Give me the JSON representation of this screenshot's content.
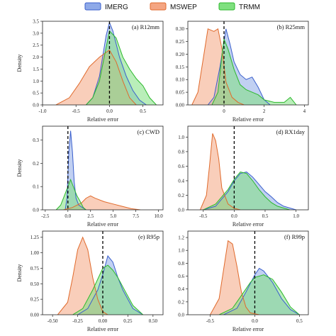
{
  "colors": {
    "IMERG": {
      "fill": "#8ea9e8",
      "stroke": "#3a5fcd"
    },
    "MSWEP": {
      "fill": "#f4a582",
      "stroke": "#e06a2c"
    },
    "TRMM": {
      "fill": "#7fe07f",
      "stroke": "#2cb82c"
    }
  },
  "legend": [
    "IMERG",
    "MSWEP",
    "TRMM"
  ],
  "chart_data": [
    {
      "type": "area",
      "title": "(a) R12mm",
      "xlabel": "Relative error",
      "ylabel": "Density",
      "xlim": [
        -1.0,
        0.8
      ],
      "ylim": [
        0,
        3.5
      ],
      "vline": 0,
      "xticks": [
        -1.0,
        -0.5,
        0.0,
        0.5
      ],
      "xticklabels": [
        "-1.0",
        "-0.5",
        "0.0",
        "0.5"
      ],
      "yticks": [
        0,
        0.5,
        1.0,
        1.5,
        2.0,
        2.5,
        3.0,
        3.5
      ],
      "yticklabels": [
        "0.0",
        "0.5",
        "1.0",
        "1.5",
        "2.0",
        "2.5",
        "3.0",
        "3.5"
      ],
      "series": [
        {
          "name": "IMERG",
          "x": [
            -0.35,
            -0.25,
            -0.15,
            -0.05,
            0.0,
            0.05,
            0.15,
            0.25,
            0.35,
            0.45,
            0.55
          ],
          "y": [
            0,
            0.3,
            1.2,
            2.9,
            3.45,
            3.1,
            2.0,
            1.2,
            0.6,
            0.2,
            0
          ]
        },
        {
          "name": "MSWEP",
          "x": [
            -0.8,
            -0.6,
            -0.45,
            -0.3,
            -0.15,
            0.0,
            0.1,
            0.2,
            0.3,
            0.4
          ],
          "y": [
            0,
            0.3,
            0.9,
            1.6,
            2.0,
            2.3,
            1.8,
            1.0,
            0.3,
            0
          ]
        },
        {
          "name": "TRMM",
          "x": [
            -0.35,
            -0.25,
            -0.15,
            -0.05,
            0.0,
            0.1,
            0.2,
            0.3,
            0.4,
            0.5,
            0.6,
            0.7
          ],
          "y": [
            0,
            0.3,
            1.0,
            2.4,
            3.1,
            2.8,
            2.0,
            1.5,
            1.1,
            0.8,
            0.3,
            0
          ]
        }
      ]
    },
    {
      "type": "area",
      "title": "(b) R25mm",
      "xlabel": "Relative error",
      "ylabel": "",
      "xlim": [
        -1.8,
        4.2
      ],
      "ylim": [
        0,
        0.33
      ],
      "vline": 0,
      "xticks": [
        0,
        2,
        4
      ],
      "xticklabels": [
        "0",
        "2",
        "4"
      ],
      "yticks": [
        0,
        0.05,
        0.1,
        0.15,
        0.2,
        0.25,
        0.3
      ],
      "yticklabels": [
        "0.00",
        "0.05",
        "0.10",
        "0.15",
        "0.20",
        "0.25",
        "0.30"
      ],
      "series": [
        {
          "name": "IMERG",
          "x": [
            -0.8,
            -0.5,
            -0.2,
            0.0,
            0.1,
            0.3,
            0.5,
            0.8,
            1.1,
            1.4,
            1.7,
            2.0,
            2.3
          ],
          "y": [
            0,
            0.03,
            0.15,
            0.25,
            0.3,
            0.24,
            0.17,
            0.12,
            0.1,
            0.11,
            0.07,
            0.02,
            0
          ]
        },
        {
          "name": "MSWEP",
          "x": [
            -1.6,
            -1.3,
            -1.0,
            -0.8,
            -0.5,
            -0.3,
            -0.1,
            0.1,
            0.4,
            0.7,
            1.0
          ],
          "y": [
            0,
            0.05,
            0.2,
            0.3,
            0.29,
            0.3,
            0.22,
            0.09,
            0.03,
            0.01,
            0
          ]
        },
        {
          "name": "TRMM",
          "x": [
            -0.6,
            -0.3,
            -0.1,
            0.0,
            0.2,
            0.5,
            0.8,
            1.1,
            1.4,
            1.7,
            2.0,
            2.5,
            3.0,
            3.3,
            3.6
          ],
          "y": [
            0,
            0.05,
            0.2,
            0.26,
            0.22,
            0.14,
            0.08,
            0.06,
            0.05,
            0.04,
            0.02,
            0.01,
            0.01,
            0.03,
            0
          ]
        }
      ]
    },
    {
      "type": "area",
      "title": "(c) CWD",
      "xlabel": "Relative error",
      "ylabel": "Density",
      "xlim": [
        -2.8,
        10.5
      ],
      "ylim": [
        0,
        0.36
      ],
      "vline": 0,
      "xticks": [
        -2.5,
        0.0,
        2.5,
        5.0,
        7.5,
        10.0
      ],
      "xticklabels": [
        "-2.5",
        "0.0",
        "2.5",
        "5.0",
        "7.5",
        "10.0"
      ],
      "yticks": [
        0,
        0.1,
        0.2,
        0.3
      ],
      "yticklabels": [
        "0.0",
        "0.1",
        "0.2",
        "0.3"
      ],
      "series": [
        {
          "name": "IMERG",
          "x": [
            -0.3,
            -0.1,
            0.1,
            0.3,
            0.5,
            0.7,
            0.9,
            1.2,
            1.6,
            2.0
          ],
          "y": [
            0,
            0.05,
            0.25,
            0.34,
            0.25,
            0.12,
            0.05,
            0.02,
            0.01,
            0
          ]
        },
        {
          "name": "MSWEP",
          "x": [
            -0.5,
            0.0,
            0.5,
            1.0,
            1.5,
            2.0,
            2.5,
            3.0,
            4.0,
            5.0,
            6.0,
            7.0,
            8.0
          ],
          "y": [
            0,
            0.005,
            0.01,
            0.02,
            0.03,
            0.05,
            0.06,
            0.05,
            0.035,
            0.025,
            0.015,
            0.005,
            0
          ]
        },
        {
          "name": "TRMM",
          "x": [
            -1.3,
            -0.8,
            -0.3,
            0.0,
            0.3,
            0.7,
            1.0,
            1.3,
            1.7,
            2.0
          ],
          "y": [
            0,
            0.02,
            0.07,
            0.1,
            0.13,
            0.09,
            0.06,
            0.04,
            0.01,
            0
          ]
        }
      ]
    },
    {
      "type": "area",
      "title": "(d) RX1day",
      "xlabel": "Relative error",
      "ylabel": "",
      "xlim": [
        -0.75,
        1.2
      ],
      "ylim": [
        0,
        1.15
      ],
      "vline": 0,
      "xticks": [
        -0.5,
        0.0,
        0.5,
        1.0
      ],
      "xticklabels": [
        "-0.5",
        "0.0",
        "0.5",
        "1.0"
      ],
      "yticks": [
        0,
        0.2,
        0.4,
        0.6,
        0.8,
        1.0
      ],
      "yticklabels": [
        "0.0",
        "0.2",
        "0.4",
        "0.6",
        "0.8",
        "1.0"
      ],
      "series": [
        {
          "name": "IMERG",
          "x": [
            -0.5,
            -0.3,
            -0.1,
            0.0,
            0.1,
            0.2,
            0.3,
            0.4,
            0.5,
            0.6,
            0.7,
            0.8,
            1.0
          ],
          "y": [
            0,
            0.05,
            0.25,
            0.4,
            0.5,
            0.52,
            0.45,
            0.35,
            0.25,
            0.18,
            0.1,
            0.05,
            0
          ]
        },
        {
          "name": "MSWEP",
          "x": [
            -0.55,
            -0.45,
            -0.4,
            -0.35,
            -0.3,
            -0.25,
            -0.2,
            -0.1,
            0.0,
            0.1
          ],
          "y": [
            0,
            0.2,
            0.6,
            1.05,
            0.95,
            0.7,
            0.3,
            0.08,
            0.02,
            0
          ]
        },
        {
          "name": "TRMM",
          "x": [
            -0.5,
            -0.3,
            -0.1,
            0.0,
            0.1,
            0.2,
            0.3,
            0.4,
            0.5,
            0.6,
            0.7,
            0.9
          ],
          "y": [
            0,
            0.08,
            0.28,
            0.42,
            0.52,
            0.5,
            0.4,
            0.28,
            0.18,
            0.1,
            0.05,
            0
          ]
        }
      ]
    },
    {
      "type": "area",
      "title": "(e) R95p",
      "xlabel": "Relative error",
      "ylabel": "Density",
      "xlim": [
        -0.6,
        0.6
      ],
      "ylim": [
        0,
        1.35
      ],
      "vline": 0,
      "xticks": [
        -0.5,
        -0.25,
        0.0,
        0.25,
        0.5
      ],
      "xticklabels": [
        "-0.50",
        "-0.25",
        "0.00",
        "0.25",
        "0.50"
      ],
      "yticks": [
        0,
        0.25,
        0.5,
        0.75,
        1.0,
        1.25
      ],
      "yticklabels": [
        "0.00",
        "0.25",
        "0.50",
        "0.75",
        "1.00",
        "1.25"
      ],
      "series": [
        {
          "name": "IMERG",
          "x": [
            -0.25,
            -0.15,
            -0.05,
            0.0,
            0.05,
            0.1,
            0.15,
            0.2,
            0.3,
            0.4
          ],
          "y": [
            0,
            0.1,
            0.4,
            0.65,
            0.95,
            0.85,
            0.6,
            0.4,
            0.1,
            0
          ]
        },
        {
          "name": "MSWEP",
          "x": [
            -0.45,
            -0.35,
            -0.3,
            -0.25,
            -0.2,
            -0.15,
            -0.1,
            -0.05,
            0.0,
            0.05
          ],
          "y": [
            0,
            0.2,
            0.6,
            1.05,
            1.25,
            1.05,
            0.6,
            0.25,
            0.05,
            0
          ]
        },
        {
          "name": "TRMM",
          "x": [
            -0.3,
            -0.2,
            -0.1,
            0.0,
            0.05,
            0.1,
            0.15,
            0.2,
            0.3,
            0.4
          ],
          "y": [
            0,
            0.1,
            0.4,
            0.75,
            0.8,
            0.72,
            0.6,
            0.45,
            0.15,
            0
          ]
        }
      ]
    },
    {
      "type": "area",
      "title": "(f) R99p",
      "xlabel": "Relative error",
      "ylabel": "",
      "xlim": [
        -0.75,
        0.6
      ],
      "ylim": [
        0,
        1.3
      ],
      "vline": 0,
      "xticks": [
        -0.5,
        0.0,
        0.5
      ],
      "xticklabels": [
        "-0.5",
        "0.0",
        "0.5"
      ],
      "yticks": [
        0,
        0.2,
        0.4,
        0.6,
        0.8,
        1.0,
        1.2
      ],
      "yticklabels": [
        "0.0",
        "0.2",
        "0.4",
        "0.6",
        "0.8",
        "1.0",
        "1.2"
      ],
      "series": [
        {
          "name": "IMERG",
          "x": [
            -0.35,
            -0.2,
            -0.1,
            0.0,
            0.05,
            0.1,
            0.2,
            0.3,
            0.4,
            0.5
          ],
          "y": [
            0,
            0.1,
            0.35,
            0.62,
            0.72,
            0.68,
            0.5,
            0.25,
            0.08,
            0
          ]
        },
        {
          "name": "MSWEP",
          "x": [
            -0.5,
            -0.4,
            -0.35,
            -0.3,
            -0.25,
            -0.2,
            -0.15,
            -0.1,
            -0.05,
            0.05
          ],
          "y": [
            0,
            0.25,
            0.7,
            1.15,
            1.1,
            0.75,
            0.35,
            0.12,
            0.03,
            0
          ]
        },
        {
          "name": "TRMM",
          "x": [
            -0.4,
            -0.25,
            -0.15,
            -0.05,
            0.0,
            0.1,
            0.2,
            0.3,
            0.4,
            0.5
          ],
          "y": [
            0,
            0.1,
            0.3,
            0.5,
            0.58,
            0.62,
            0.55,
            0.35,
            0.12,
            0
          ]
        }
      ]
    }
  ]
}
